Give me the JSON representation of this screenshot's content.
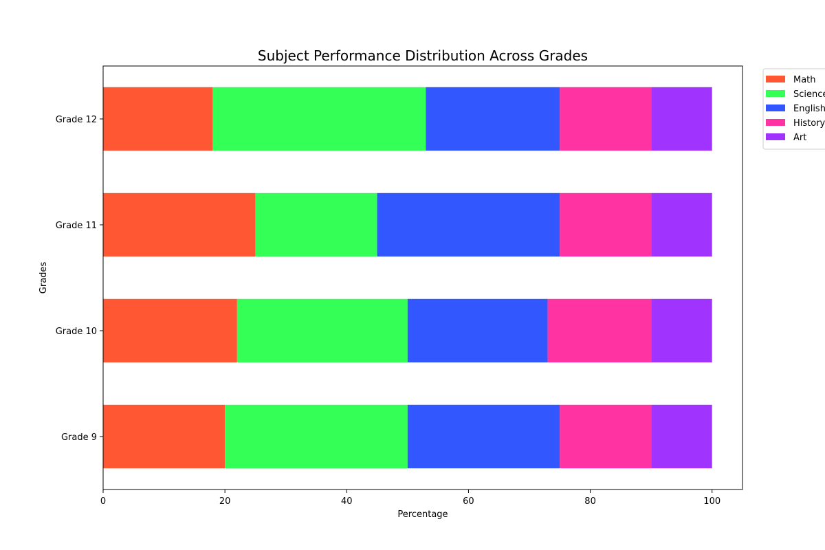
{
  "chart_data": {
    "type": "bar",
    "orientation": "horizontal",
    "stacked": true,
    "title": "Subject Performance Distribution Across Grades",
    "xlabel": "Percentage",
    "ylabel": "Grades",
    "categories": [
      "Grade 9",
      "Grade 10",
      "Grade 11",
      "Grade 12"
    ],
    "xlim": [
      0,
      105
    ],
    "xticks": [
      0,
      20,
      40,
      60,
      80,
      100
    ],
    "grid": false,
    "legend_position": "upper-right outside",
    "series": [
      {
        "name": "Math",
        "color": "#ff5733",
        "values": [
          20,
          22,
          25,
          18
        ]
      },
      {
        "name": "Science",
        "color": "#33ff57",
        "values": [
          30,
          28,
          20,
          35
        ]
      },
      {
        "name": "English",
        "color": "#3357ff",
        "values": [
          25,
          23,
          30,
          22
        ]
      },
      {
        "name": "History",
        "color": "#ff33a1",
        "values": [
          15,
          17,
          15,
          15
        ]
      },
      {
        "name": "Art",
        "color": "#a133ff",
        "values": [
          10,
          10,
          10,
          10
        ]
      }
    ]
  }
}
